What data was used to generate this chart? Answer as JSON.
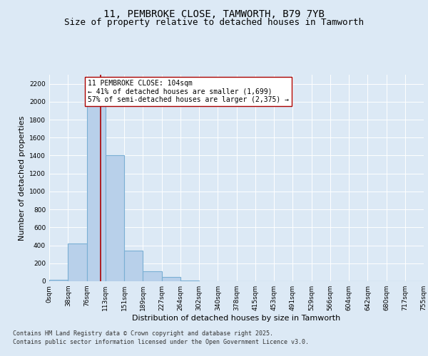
{
  "title_line1": "11, PEMBROKE CLOSE, TAMWORTH, B79 7YB",
  "title_line2": "Size of property relative to detached houses in Tamworth",
  "xlabel": "Distribution of detached houses by size in Tamworth",
  "ylabel": "Number of detached properties",
  "bin_edges": [
    0,
    38,
    76,
    113,
    151,
    189,
    227,
    264,
    302,
    340,
    378,
    415,
    453,
    491,
    529,
    566,
    604,
    642,
    680,
    717,
    755
  ],
  "bar_heights": [
    18,
    420,
    2090,
    1400,
    340,
    110,
    50,
    10,
    0,
    0,
    0,
    0,
    0,
    0,
    0,
    0,
    0,
    0,
    0,
    0
  ],
  "bar_color": "#b8d0ea",
  "bar_edgecolor": "#7aafd4",
  "bar_linewidth": 0.8,
  "vline_x": 104,
  "vline_color": "#aa0000",
  "vline_linewidth": 1.2,
  "annotation_text": "11 PEMBROKE CLOSE: 104sqm\n← 41% of detached houses are smaller (1,699)\n57% of semi-detached houses are larger (2,375) →",
  "ylim_max": 2300,
  "yticks": [
    0,
    200,
    400,
    600,
    800,
    1000,
    1200,
    1400,
    1600,
    1800,
    2000,
    2200
  ],
  "bg_color": "#dce9f5",
  "tick_labels": [
    "0sqm",
    "38sqm",
    "76sqm",
    "113sqm",
    "151sqm",
    "189sqm",
    "227sqm",
    "264sqm",
    "302sqm",
    "340sqm",
    "378sqm",
    "415sqm",
    "453sqm",
    "491sqm",
    "529sqm",
    "566sqm",
    "604sqm",
    "642sqm",
    "680sqm",
    "717sqm",
    "755sqm"
  ],
  "title_fontsize": 10,
  "subtitle_fontsize": 9,
  "axis_label_fontsize": 8,
  "tick_fontsize": 6.5,
  "annotation_fontsize": 7,
  "footer_fontsize": 6,
  "footer_line1": "Contains HM Land Registry data © Crown copyright and database right 2025.",
  "footer_line2": "Contains public sector information licensed under the Open Government Licence v3.0."
}
